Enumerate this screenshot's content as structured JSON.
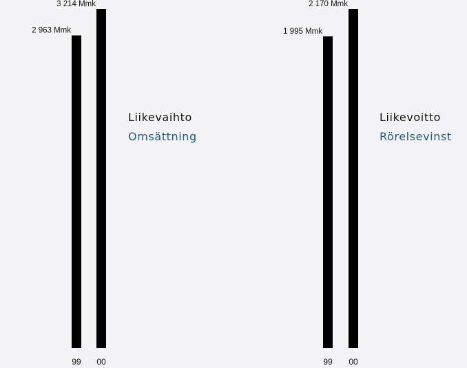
{
  "colors": {
    "background": "#f4f4f6",
    "bar": "#000000",
    "label_primary": "#111111",
    "label_secondary": "#1f5b8c"
  },
  "chart_data": [
    {
      "type": "bar",
      "categories": [
        "99",
        "00"
      ],
      "values": [
        2963,
        3214
      ],
      "value_labels": [
        "2 963 Mmk",
        "3 214 Mmk"
      ],
      "title": "Liikevaihto",
      "subtitle": "Omsättning",
      "xlabel": "",
      "ylabel": "",
      "ylim": [
        0,
        3214
      ],
      "grid": false
    },
    {
      "type": "bar",
      "categories": [
        "99",
        "00"
      ],
      "values": [
        1995,
        2170
      ],
      "value_labels": [
        "1 995 Mmk",
        "2 170 Mmk"
      ],
      "title": "Liikevoitto",
      "subtitle": "Rörelsevinst",
      "xlabel": "",
      "ylabel": "",
      "ylim": [
        0,
        2170
      ],
      "grid": false
    }
  ]
}
